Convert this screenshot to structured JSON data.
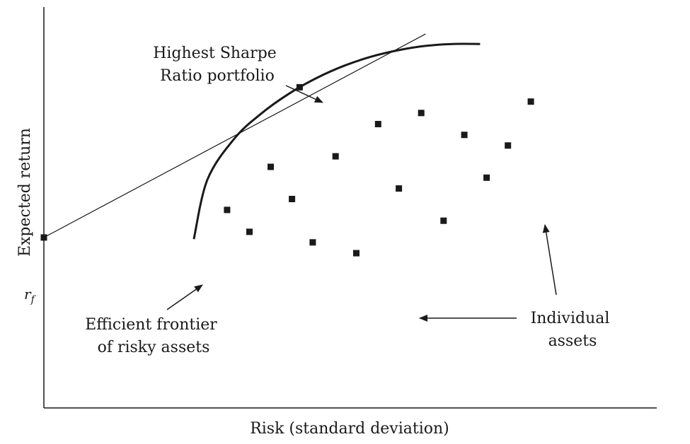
{
  "chart_data": {
    "type": "scatter",
    "title": "",
    "xlabel": "Risk (standard deviation)",
    "ylabel": "Expected return",
    "xlim": [
      0,
      100
    ],
    "ylim": [
      0,
      100
    ],
    "grid": false,
    "risk_free": {
      "label": "r",
      "subscript": "f",
      "x": 0,
      "y": 28.5
    },
    "efficient_frontier": {
      "name": "Efficient frontier",
      "points": [
        [
          27.5,
          27.9
        ],
        [
          30.0,
          49.9
        ],
        [
          35.0,
          65.2
        ],
        [
          40.0,
          74.5
        ],
        [
          45.0,
          81.7
        ],
        [
          50.0,
          87.4
        ],
        [
          55.0,
          91.9
        ],
        [
          60.0,
          95.3
        ],
        [
          65.0,
          97.7
        ],
        [
          70.0,
          99.3
        ],
        [
          75.0,
          100.0
        ],
        [
          80.0,
          100.0
        ]
      ]
    },
    "tangent_line": {
      "name": "Capital allocation line",
      "from": [
        0,
        28.5
      ],
      "to": [
        70,
        103.7
      ]
    },
    "tangency_portfolio": {
      "x": 46.9,
      "y": 84.0
    },
    "individual_assets": [
      {
        "x": 33.6,
        "y": 38.7
      },
      {
        "x": 37.7,
        "y": 30.6
      },
      {
        "x": 41.6,
        "y": 54.6
      },
      {
        "x": 45.5,
        "y": 42.7
      },
      {
        "x": 49.3,
        "y": 26.7
      },
      {
        "x": 53.5,
        "y": 58.5
      },
      {
        "x": 57.3,
        "y": 22.7
      },
      {
        "x": 61.3,
        "y": 70.4
      },
      {
        "x": 65.1,
        "y": 46.6
      },
      {
        "x": 69.2,
        "y": 74.5
      },
      {
        "x": 73.3,
        "y": 34.7
      },
      {
        "x": 77.1,
        "y": 66.4
      },
      {
        "x": 81.2,
        "y": 50.6
      },
      {
        "x": 85.1,
        "y": 62.5
      },
      {
        "x": 89.3,
        "y": 78.7
      }
    ],
    "annotations": [
      {
        "id": "sharpe",
        "lines": [
          "Highest Sharpe",
          "Ratio portfolio"
        ]
      },
      {
        "id": "frontier",
        "lines": [
          "Efficient frontier",
          "of risky assets"
        ]
      },
      {
        "id": "assets",
        "lines": [
          "Individual",
          "assets"
        ]
      }
    ]
  },
  "colors": {
    "ink": "#1a1a1a",
    "background": "#ffffff"
  }
}
